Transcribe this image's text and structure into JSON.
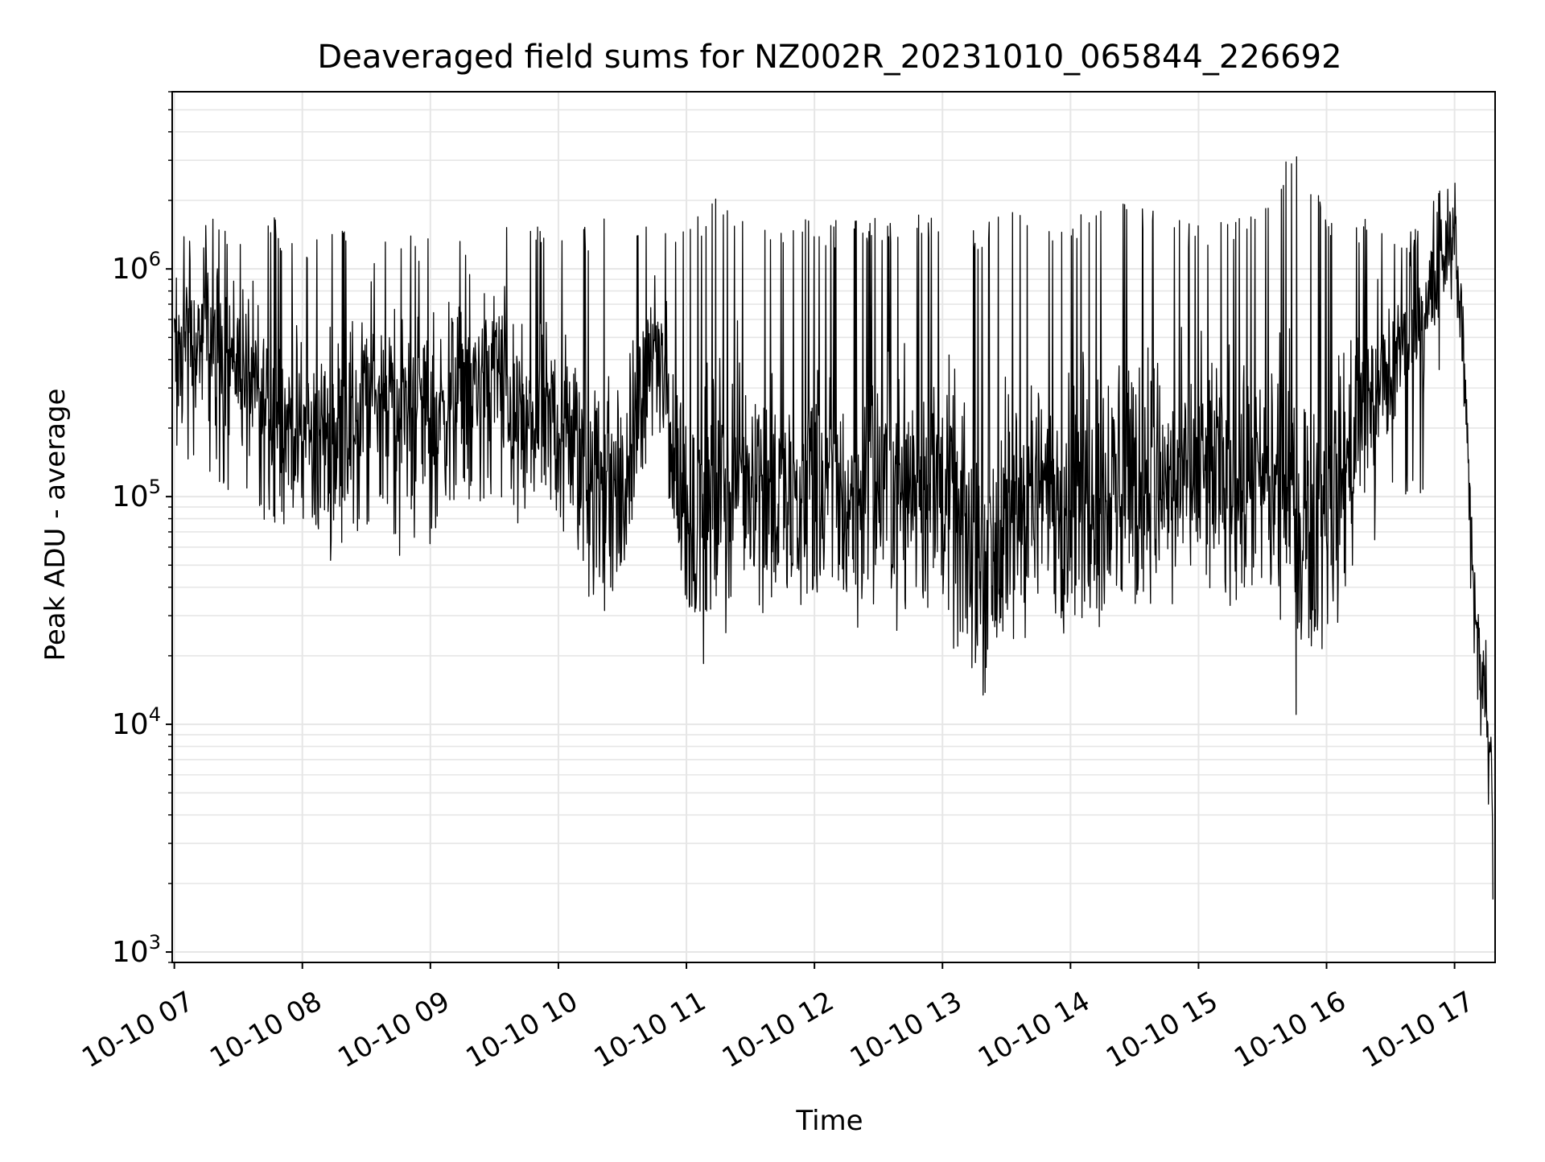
{
  "chart_data": {
    "type": "line",
    "title": "Deaveraged field sums for NZ002R_20231010_065844_226692",
    "xlabel": "Time",
    "ylabel": "Peak ADU - average",
    "yscale": "log",
    "grid": true,
    "line_color": "#000000",
    "grid_color": "#e6e6e6",
    "x_tick_rotation_deg": 30,
    "xlim": [
      "2023-10-10 06:59",
      "2023-10-10 17:19"
    ],
    "ylim": [
      900,
      6000000
    ],
    "xticks": [
      {
        "label": "10-10 07",
        "value": "2023-10-10 07:00"
      },
      {
        "label": "10-10 08",
        "value": "2023-10-10 08:00"
      },
      {
        "label": "10-10 09",
        "value": "2023-10-10 09:00"
      },
      {
        "label": "10-10 10",
        "value": "2023-10-10 10:00"
      },
      {
        "label": "10-10 11",
        "value": "2023-10-10 11:00"
      },
      {
        "label": "10-10 12",
        "value": "2023-10-10 12:00"
      },
      {
        "label": "10-10 13",
        "value": "2023-10-10 13:00"
      },
      {
        "label": "10-10 14",
        "value": "2023-10-10 14:00"
      },
      {
        "label": "10-10 15",
        "value": "2023-10-10 15:00"
      },
      {
        "label": "10-10 16",
        "value": "2023-10-10 16:00"
      },
      {
        "label": "10-10 17",
        "value": "2023-10-10 17:00"
      }
    ],
    "yticks": [
      {
        "base": "10",
        "exp": "3",
        "value": 1000
      },
      {
        "base": "10",
        "exp": "4",
        "value": 10000
      },
      {
        "base": "10",
        "exp": "5",
        "value": 100000
      },
      {
        "base": "10",
        "exp": "6",
        "value": 1000000
      }
    ],
    "series": [
      {
        "x": [
          "2023-10-10 07:00",
          "2023-10-10 07:15",
          "2023-10-10 07:30",
          "2023-10-10 07:45",
          "2023-10-10 08:00",
          "2023-10-10 08:15",
          "2023-10-10 08:30",
          "2023-10-10 08:45",
          "2023-10-10 09:00",
          "2023-10-10 09:15",
          "2023-10-10 09:30",
          "2023-10-10 09:45",
          "2023-10-10 10:00",
          "2023-10-10 10:15",
          "2023-10-10 10:30",
          "2023-10-10 10:45",
          "2023-10-10 11:00",
          "2023-10-10 11:15",
          "2023-10-10 11:30",
          "2023-10-10 11:45",
          "2023-10-10 12:00",
          "2023-10-10 12:15",
          "2023-10-10 12:30",
          "2023-10-10 12:45",
          "2023-10-10 13:00",
          "2023-10-10 13:15",
          "2023-10-10 13:30",
          "2023-10-10 13:45",
          "2023-10-10 14:00",
          "2023-10-10 14:15",
          "2023-10-10 14:30",
          "2023-10-10 14:45",
          "2023-10-10 15:00",
          "2023-10-10 15:15",
          "2023-10-10 15:30",
          "2023-10-10 15:45",
          "2023-10-10 16:00",
          "2023-10-10 16:15",
          "2023-10-10 16:30",
          "2023-10-10 16:45",
          "2023-10-10 17:00",
          "2023-10-10 17:05",
          "2023-10-10 17:10",
          "2023-10-10 17:15",
          "2023-10-10 17:18"
        ],
        "median": [
          450000,
          500000,
          400000,
          220000,
          200000,
          180000,
          300000,
          250000,
          240000,
          300000,
          400000,
          180000,
          220000,
          120000,
          100000,
          500000,
          80000,
          100000,
          150000,
          90000,
          120000,
          100000,
          110000,
          130000,
          110000,
          50000,
          70000,
          110000,
          110000,
          120000,
          140000,
          110000,
          120000,
          130000,
          110000,
          90000,
          80000,
          200000,
          350000,
          600000,
          1500000,
          300000,
          30000,
          10000,
          5000
        ],
        "low": [
          150000,
          120000,
          100000,
          70000,
          80000,
          60000,
          70000,
          55000,
          60000,
          90000,
          100000,
          60000,
          70000,
          35000,
          45000,
          200000,
          30000,
          30000,
          45000,
          40000,
          35000,
          35000,
          33000,
          32000,
          30000,
          22000,
          25000,
          30000,
          28000,
          30000,
          35000,
          30000,
          35000,
          38000,
          40000,
          21000,
          30000,
          30000,
          100000,
          100000,
          900000,
          85000,
          12000,
          5000,
          1400
        ],
        "high": [
          1500000,
          1700000,
          1500000,
          1800000,
          1200000,
          1600000,
          1400000,
          1400000,
          1400000,
          1500000,
          1500000,
          1700000,
          1500000,
          1600000,
          1800000,
          1600000,
          1500000,
          2300000,
          1600000,
          1700000,
          1700000,
          1600000,
          1700000,
          1700000,
          1800000,
          1500000,
          1800000,
          1700000,
          1700000,
          1900000,
          2100000,
          1700000,
          1600000,
          1800000,
          1700000,
          4000000,
          1700000,
          1700000,
          1500000,
          1600000,
          3000000,
          700000,
          35000,
          25000,
          8000
        ]
      }
    ]
  }
}
